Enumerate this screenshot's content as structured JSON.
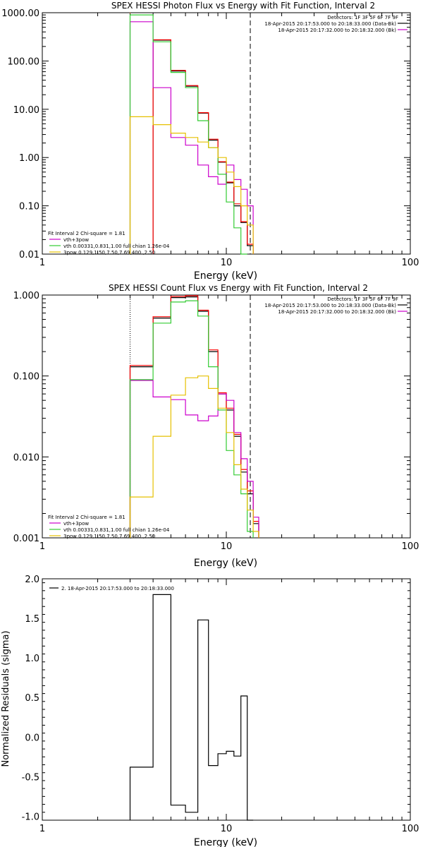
{
  "chart_data": [
    {
      "type": "line",
      "title": "SPEX HESSI Photon Flux vs Energy with Fit Function, Interval 2",
      "xlabel": "Energy (keV)",
      "ylabel": "",
      "x_scale": "log",
      "y_scale": "log",
      "xlim": [
        1,
        100
      ],
      "ylim": [
        0.01,
        1000
      ],
      "x_ticks": [
        "1",
        "10",
        "100"
      ],
      "y_ticks": [
        "1000.00",
        "100.00",
        "10.00",
        "1.00",
        "0.10",
        "0.01"
      ],
      "x_ticks_values": [
        1,
        10,
        100
      ],
      "y_ticks_values": [
        1000,
        100,
        10,
        1,
        0.1,
        0.01
      ],
      "vlines": [
        {
          "x": 3.0,
          "style": "dotted",
          "color": "#ff8c00"
        },
        {
          "x": 13.5,
          "style": "dashed",
          "color": "#000000"
        }
      ],
      "edges": [
        3.0,
        4.0,
        5.0,
        6.0,
        7.0,
        8.0,
        9.0,
        10.0,
        11.0,
        12.0,
        13.0,
        14.0,
        15.0
      ],
      "series": [
        {
          "name": "",
          "color": "#000000",
          "values": [
            null,
            270,
            62,
            30,
            8.3,
            2.3,
            0.8,
            0.3,
            0.1,
            0.045,
            0.015,
            null
          ]
        },
        {
          "name": "",
          "color": "#ff0000",
          "values": [
            null,
            275,
            64,
            31,
            8.5,
            2.4,
            0.82,
            0.31,
            0.11,
            0.047,
            0.016,
            null
          ]
        },
        {
          "name": "vth+3pow",
          "color": "#cc00cc",
          "values": [
            650,
            28,
            2.6,
            1.8,
            0.7,
            0.4,
            0.28,
            0.7,
            0.35,
            0.22,
            0.1,
            null
          ]
        },
        {
          "name": "vth 0.00331,0.831,1.00  full chian 1.26e-04",
          "color": "#33cc33",
          "values": [
            900,
            250,
            58,
            28,
            5.8,
            1.6,
            0.45,
            0.12,
            0.035,
            0.01,
            null,
            null
          ]
        },
        {
          "name": "3pow 0.129,1.50,7.50,7.69,400.,2.50",
          "color": "#e6c000",
          "values": [
            7,
            4.8,
            3.2,
            2.6,
            2.1,
            1.6,
            1.0,
            0.5,
            0.25,
            0.1,
            0.04,
            null
          ]
        }
      ],
      "legend_top": {
        "title": "Detectors: 1F 3F 5F 6F 7F 9F",
        "entries": [
          {
            "label": "18-Apr-2015 20:17:53.000 to 20:18:33.000 (Data-Bk)",
            "color": "#000000"
          },
          {
            "label": "18-Apr-2015 20:17:32.000 to 20:18:32.000 (Bk)",
            "color": "#cc00cc"
          }
        ]
      },
      "legend_bottom": {
        "title": "Fit Interval 2   Chi-square = 1.81",
        "entries": [
          {
            "label": "vth+3pow",
            "color": "#cc00cc"
          },
          {
            "label": "vth 0.00331,0.831,1.00  full chian 1.26e-04",
            "color": "#33cc33"
          },
          {
            "label": "3pow 0.129,1.50,7.50,7.69,400.,2.50",
            "color": "#e6c000"
          }
        ]
      }
    },
    {
      "type": "line",
      "title": "SPEX HESSI Count Flux vs Energy with Fit Function, Interval 2",
      "xlabel": "Energy (keV)",
      "ylabel": "",
      "x_scale": "log",
      "y_scale": "log",
      "xlim": [
        1,
        100
      ],
      "ylim": [
        0.001,
        1
      ],
      "x_ticks": [
        "1",
        "10",
        "100"
      ],
      "y_ticks": [
        "1.000",
        "0.100",
        "0.010",
        "0.001"
      ],
      "x_ticks_values": [
        1,
        10,
        100
      ],
      "y_ticks_values": [
        1,
        0.1,
        0.01,
        0.001
      ],
      "vlines": [
        {
          "x": 3.0,
          "style": "dotted",
          "color": "#000000"
        },
        {
          "x": 13.5,
          "style": "dashed",
          "color": "#000000"
        }
      ],
      "edges": [
        3.0,
        4.0,
        5.0,
        6.0,
        7.0,
        8.0,
        9.0,
        10.0,
        11.0,
        12.0,
        13.0,
        14.0,
        15.0
      ],
      "series": [
        {
          "name": "",
          "color": "#000000",
          "values": [
            0.13,
            0.52,
            0.93,
            0.95,
            0.63,
            0.2,
            0.06,
            0.038,
            0.018,
            0.0065,
            0.0035,
            0.0015
          ]
        },
        {
          "name": "",
          "color": "#ff0000",
          "values": [
            0.135,
            0.54,
            0.96,
            0.98,
            0.65,
            0.21,
            0.062,
            0.04,
            0.019,
            0.007,
            0.0038,
            0.0016
          ]
        },
        {
          "name": "vth+3pow",
          "color": "#cc00cc",
          "values": [
            0.088,
            0.055,
            0.051,
            0.033,
            0.028,
            0.032,
            0.06,
            0.05,
            0.02,
            0.0095,
            0.005,
            0.0018
          ]
        },
        {
          "name": "vth 0.00331,0.831,1.00  full chian 1.26e-04",
          "color": "#33cc33",
          "values": [
            0.09,
            0.45,
            0.82,
            0.85,
            0.55,
            0.13,
            0.038,
            0.012,
            0.006,
            0.0035,
            0.0012,
            null
          ]
        },
        {
          "name": "3pow 0.129,1.50,7.50,7.69,400.,2.50",
          "color": "#e6c000",
          "values": [
            0.0032,
            0.018,
            0.058,
            0.095,
            0.1,
            0.07,
            0.04,
            0.02,
            0.008,
            0.004,
            0.0022,
            0.0012
          ]
        }
      ],
      "legend_top": {
        "title": "Detectors: 1F 3F 5F 6F 7F 9F",
        "entries": [
          {
            "label": "18-Apr-2015 20:17:53.000 to 20:18:33.000 (Data-Bk)",
            "color": "#000000"
          },
          {
            "label": "18-Apr-2015 20:17:32.000 to 20:18:32.000 (Bk)",
            "color": "#cc00cc"
          }
        ]
      },
      "legend_bottom": {
        "title": "Fit Interval 2   Chi-square = 1.81",
        "entries": [
          {
            "label": "vth+3pow",
            "color": "#cc00cc"
          },
          {
            "label": "vth 0.00331,0.831,1.00  full chian 1.26e-04",
            "color": "#33cc33"
          },
          {
            "label": "3pow 0.129,1.50,7.50,7.69,400.,2.50",
            "color": "#e6c000"
          }
        ]
      }
    },
    {
      "type": "line",
      "title": "",
      "xlabel": "Energy (keV)",
      "ylabel": "Normalized Residuals (sigma)",
      "x_scale": "log",
      "y_scale": "linear",
      "xlim": [
        1,
        100
      ],
      "ylim": [
        -1.05,
        2.0
      ],
      "x_ticks": [
        "1",
        "10",
        "100"
      ],
      "y_ticks": [
        "2.0",
        "1.5",
        "1.0",
        "0.5",
        "0.0",
        "-0.5",
        "-1.0"
      ],
      "x_ticks_values": [
        1,
        10,
        100
      ],
      "y_ticks_values": [
        2.0,
        1.5,
        1.0,
        0.5,
        0.0,
        -0.5,
        -1.0
      ],
      "vlines": [],
      "edges": [
        3.0,
        4.0,
        5.0,
        6.0,
        7.0,
        8.0,
        9.0,
        10.0,
        11.0,
        12.0,
        13.0,
        14.0
      ],
      "series": [
        {
          "name": "2. 18-Apr-2015 20:17:53.000 to 20:18:33.000",
          "color": "#000000",
          "values": [
            -0.38,
            1.8,
            -0.86,
            -0.95,
            1.48,
            -0.36,
            -0.21,
            -0.18,
            -0.24,
            0.52,
            -1.05
          ]
        }
      ],
      "legend_top": {
        "title": "",
        "entries": [
          {
            "label": "2. 18-Apr-2015 20:17:53.000 to 20:18:33.000",
            "color": "#000000"
          }
        ]
      },
      "legend_bottom": null
    }
  ]
}
